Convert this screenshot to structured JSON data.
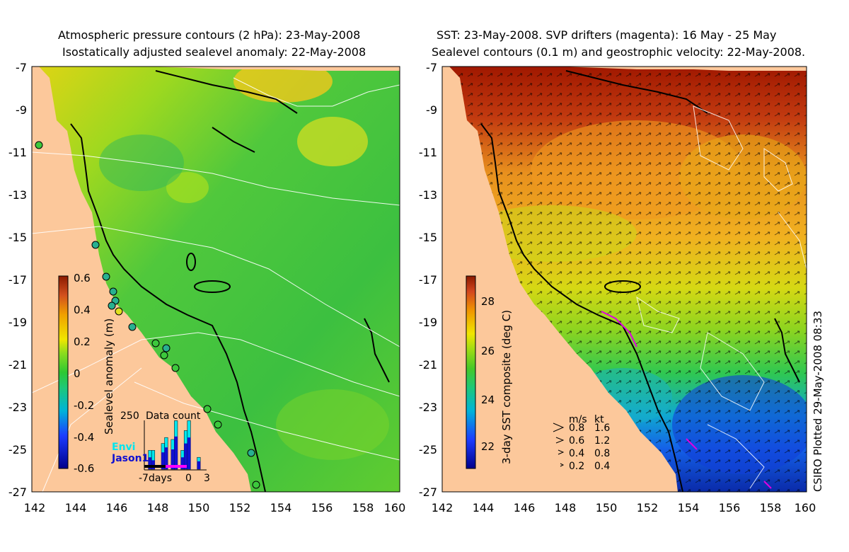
{
  "left_panel": {
    "title_line1": "Atmospheric pressure contours (2 hPa): 23-May-2008",
    "title_line2": "Isostatically adjusted sealevel anomaly: 22-May-2008",
    "y_ticks": [
      "-7",
      "-9",
      "-11",
      "-13",
      "-15",
      "-17",
      "-19",
      "-21",
      "-23",
      "-25",
      "-27"
    ],
    "x_ticks": [
      "142",
      "144",
      "146",
      "148",
      "150",
      "152",
      "154",
      "156",
      "158",
      "160"
    ],
    "colorbar": {
      "label": "Sealevel anomaly (m)",
      "ticks": [
        "0.6",
        "0.4",
        "0.2",
        "0",
        "-0.2",
        "-0.4",
        "-0.6"
      ]
    },
    "data_count": {
      "title": "Data count",
      "ymax_label": "250",
      "series": [
        {
          "name": "Envi",
          "color": "#00e5ee"
        },
        {
          "name": "Jason1",
          "color": "#1010d0"
        }
      ],
      "x_labels": [
        "-7days",
        "0",
        "3"
      ],
      "envi_counts": [
        0,
        95,
        95,
        0,
        0,
        130,
        160,
        0,
        150,
        245,
        0,
        95,
        195,
        245,
        0,
        0,
        60,
        0
      ],
      "jason_counts": [
        0,
        60,
        45,
        0,
        0,
        85,
        110,
        0,
        100,
        165,
        0,
        60,
        130,
        160,
        0,
        0,
        40,
        0
      ]
    }
  },
  "right_panel": {
    "title_line1": "SST: 23-May-2008. SVP drifters (magenta): 16 May - 25 May",
    "title_line2": "Sealevel contours (0.1 m) and geostrophic velocity: 22-May-2008.",
    "y_ticks": [
      "-7",
      "-9",
      "-11",
      "-13",
      "-15",
      "-17",
      "-19",
      "-21",
      "-23",
      "-25",
      "-27"
    ],
    "x_ticks": [
      "142",
      "144",
      "146",
      "148",
      "150",
      "152",
      "154",
      "156",
      "158",
      "160"
    ],
    "colorbar": {
      "label": "3-day SST composite (deg C)",
      "ticks": [
        "28",
        "26",
        "24",
        "22"
      ]
    },
    "velocity_legend": {
      "header_ms": "m/s",
      "header_kt": "kt",
      "rows": [
        {
          "ms": "0.8",
          "kt": "1.6"
        },
        {
          "ms": "0.6",
          "kt": "1.2"
        },
        {
          "ms": "0.4",
          "kt": "0.8"
        },
        {
          "ms": "0.2",
          "kt": "0.4"
        }
      ]
    },
    "credit": "CSIRO Plotted 29-May-2008 08:33"
  },
  "colors": {
    "land": "#fcc89b",
    "sealevel_sea": "#3cc83c",
    "sst_warm": "#cc2200",
    "sst_cool": "#1050e0"
  }
}
